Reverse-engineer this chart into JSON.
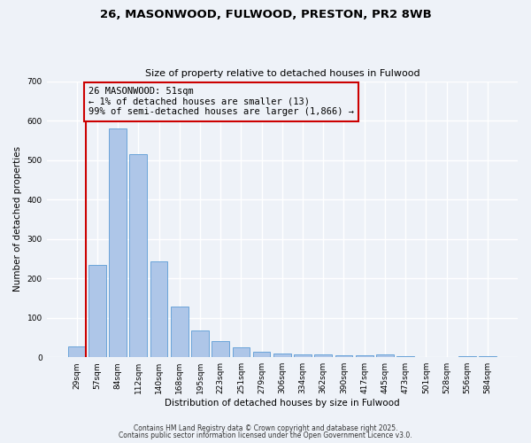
{
  "title": "26, MASONWOOD, FULWOOD, PRESTON, PR2 8WB",
  "subtitle": "Size of property relative to detached houses in Fulwood",
  "xlabel": "Distribution of detached houses by size in Fulwood",
  "ylabel": "Number of detached properties",
  "categories": [
    "29sqm",
    "57sqm",
    "84sqm",
    "112sqm",
    "140sqm",
    "168sqm",
    "195sqm",
    "223sqm",
    "251sqm",
    "279sqm",
    "306sqm",
    "334sqm",
    "362sqm",
    "390sqm",
    "417sqm",
    "445sqm",
    "473sqm",
    "501sqm",
    "528sqm",
    "556sqm",
    "584sqm"
  ],
  "values": [
    28,
    235,
    580,
    515,
    243,
    128,
    68,
    40,
    25,
    15,
    10,
    8,
    8,
    4,
    4,
    8,
    2,
    0,
    0,
    2,
    2
  ],
  "bar_color": "#aec6e8",
  "bar_edge_color": "#5b9bd5",
  "vline_color": "#cc0000",
  "annotation_box_color": "#cc0000",
  "annotation_line1": "26 MASONWOOD: 51sqm",
  "annotation_line2": "← 1% of detached houses are smaller (13)",
  "annotation_line3": "99% of semi-detached houses are larger (1,866) →",
  "ylim": [
    0,
    700
  ],
  "yticks": [
    0,
    100,
    200,
    300,
    400,
    500,
    600,
    700
  ],
  "background_color": "#eef2f8",
  "grid_color": "#ffffff",
  "footer1": "Contains HM Land Registry data © Crown copyright and database right 2025.",
  "footer2": "Contains public sector information licensed under the Open Government Licence v3.0."
}
